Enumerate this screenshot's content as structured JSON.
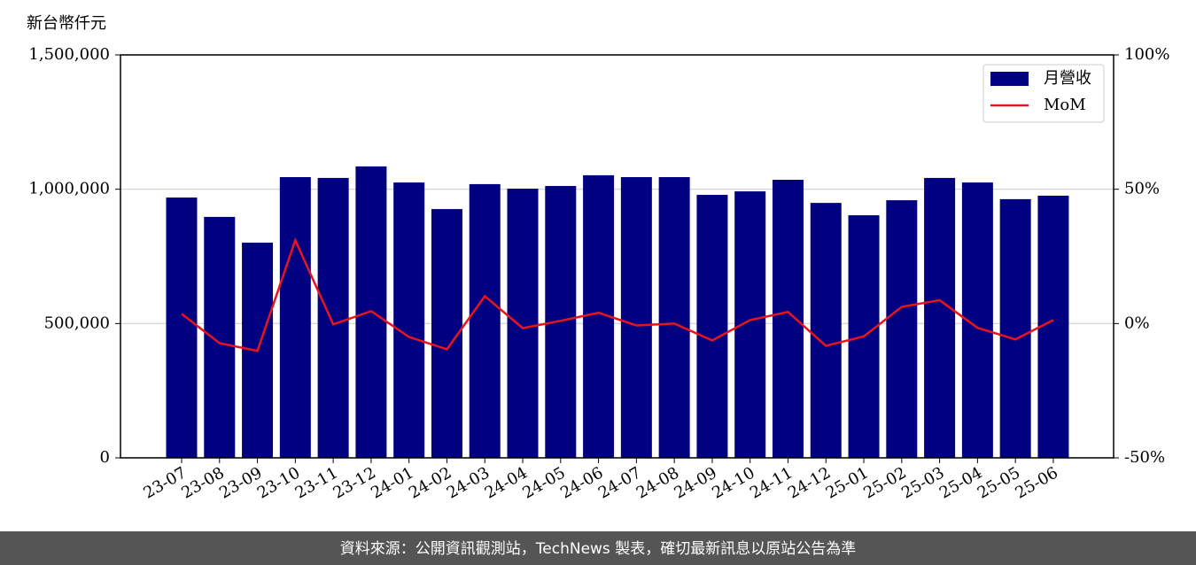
{
  "chart_data": {
    "type": "bar_line",
    "y_label": "新台幣仟元",
    "source": "資料來源：公開資訊觀測站，TechNews 製表，確切最新訊息以原站公告為準",
    "categories": [
      "23-07",
      "23-08",
      "23-09",
      "23-10",
      "23-11",
      "23-12",
      "24-01",
      "24-02",
      "24-03",
      "24-04",
      "24-05",
      "24-06",
      "24-07",
      "24-08",
      "24-09",
      "24-10",
      "24-11",
      "24-12",
      "25-01",
      "25-02",
      "25-03",
      "25-04",
      "25-05",
      "25-06"
    ],
    "series": [
      {
        "name": "月營收",
        "type": "bar",
        "color": "#000080",
        "values": [
          969000,
          897000,
          801000,
          1045000,
          1042000,
          1085000,
          1025000,
          926000,
          1019000,
          1002000,
          1012000,
          1052000,
          1045000,
          1045000,
          979000,
          992000,
          1035000,
          949000,
          903000,
          959000,
          1042000,
          1025000,
          963000,
          976000
        ]
      },
      {
        "name": "MoM",
        "type": "line",
        "axis": "y2",
        "color": "#e8141b",
        "values": [
          3.6,
          -7.3,
          -10.2,
          31.0,
          -0.3,
          4.6,
          -5.0,
          -9.6,
          10.2,
          -1.7,
          1.0,
          4.0,
          -0.7,
          0.0,
          -6.3,
          1.3,
          4.3,
          -8.3,
          -4.8,
          6.2,
          8.7,
          -1.6,
          -5.9,
          1.3
        ]
      }
    ],
    "ylim": [
      0,
      1500000
    ],
    "yticks": [
      0,
      {
        "value": 500000,
        "label": "500,000"
      },
      {
        "value": 1000000,
        "label": "1,000,000"
      },
      {
        "value": 1500000,
        "label": "1,500,000"
      }
    ],
    "y2lim": [
      -50,
      100
    ],
    "y2ticks": [
      {
        "value": -50,
        "label": "-50%"
      },
      {
        "value": 0,
        "label": "0%"
      },
      {
        "value": 50,
        "label": "50%"
      },
      {
        "value": 100,
        "label": "100%"
      }
    ],
    "grid": true,
    "legend": "upper right"
  }
}
